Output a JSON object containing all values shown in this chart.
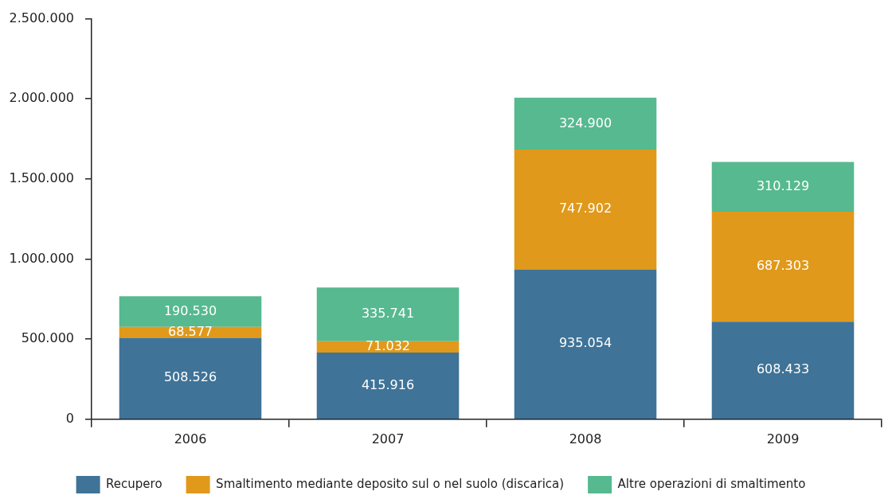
{
  "chart_data": {
    "type": "bar",
    "stacked": true,
    "categories": [
      "2006",
      "2007",
      "2008",
      "2009"
    ],
    "series": [
      {
        "name": "Recupero",
        "color": "#3f7398",
        "values": [
          508526,
          415916,
          935054,
          608433
        ],
        "value_labels": [
          "508.526",
          "415.916",
          "935.054",
          "608.433"
        ]
      },
      {
        "name": "Smaltimento mediante deposito sul o nel suolo (discarica)",
        "color": "#e0991b",
        "values": [
          68577,
          71032,
          747902,
          687303
        ],
        "value_labels": [
          "68.577",
          "71.032",
          "747.902",
          "687.303"
        ]
      },
      {
        "name": "Altre operazioni di smaltimento",
        "color": "#56b98f",
        "values": [
          190530,
          335741,
          324900,
          310129
        ],
        "value_labels": [
          "190.530",
          "335.741",
          "324.900",
          "310.129"
        ]
      }
    ],
    "ylim": [
      0,
      2500000
    ],
    "yticks": [
      {
        "value": 0,
        "label": "0"
      },
      {
        "value": 500000,
        "label": "500.000"
      },
      {
        "value": 1000000,
        "label": "1.000.000"
      },
      {
        "value": 1500000,
        "label": "1.500.000"
      },
      {
        "value": 2000000,
        "label": "2.000.000"
      },
      {
        "value": 2500000,
        "label": "2.500.000"
      }
    ],
    "grid": false,
    "legend": "bottom"
  }
}
